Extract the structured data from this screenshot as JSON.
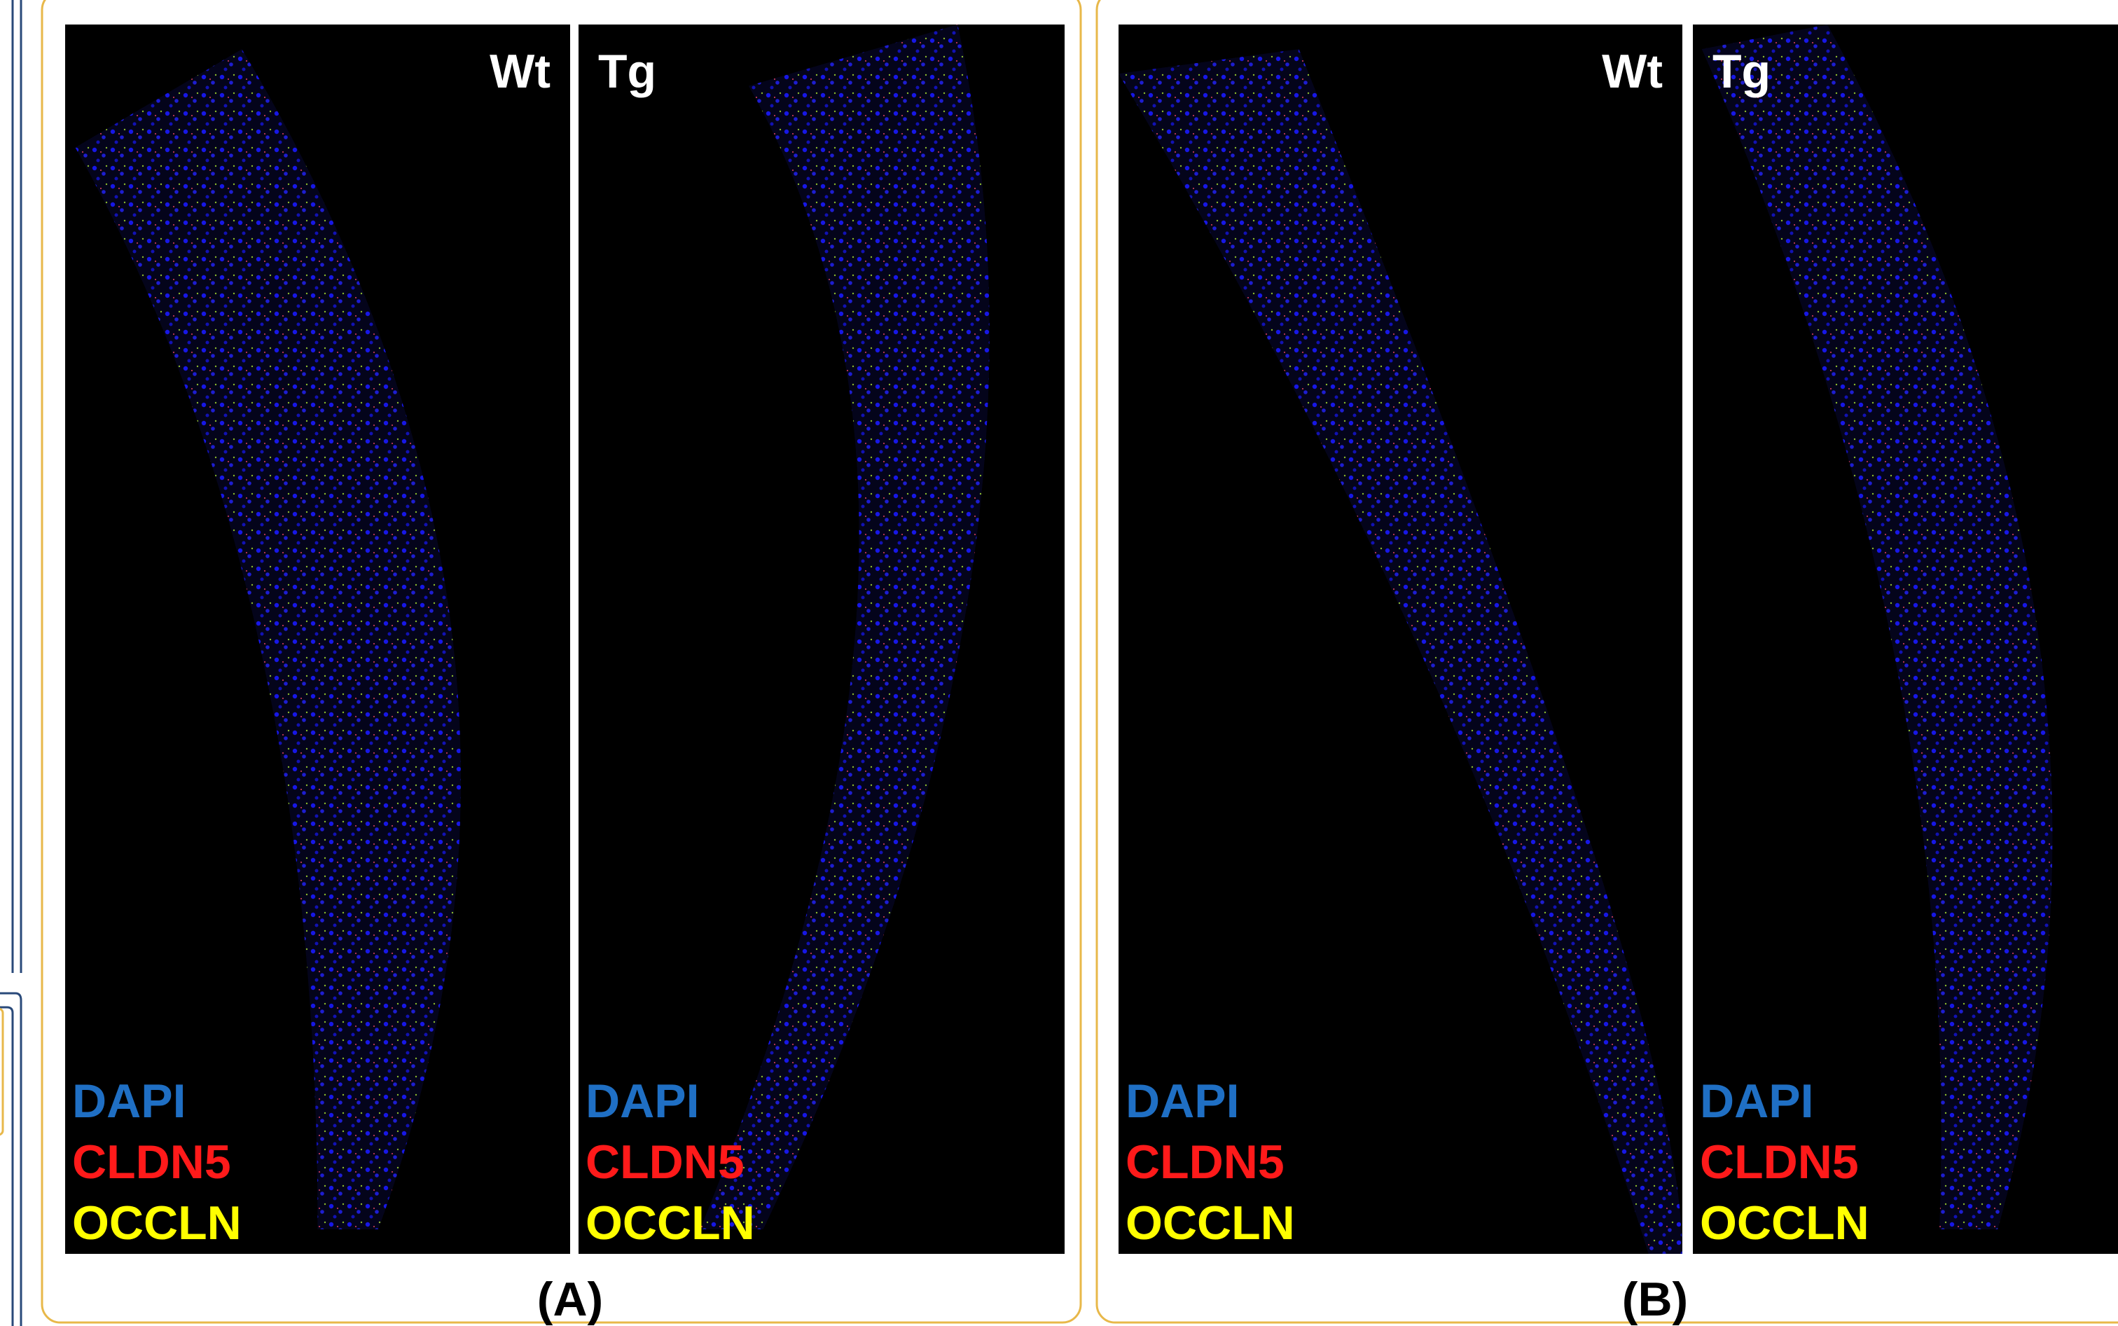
{
  "panels": [
    {
      "label": "(A)",
      "images": [
        {
          "genotype": "Wt",
          "stains": [
            "DAPI",
            "CLDN5",
            "OCCLN"
          ]
        },
        {
          "genotype": "Tg",
          "stains": [
            "DAPI",
            "CLDN5",
            "OCCLN"
          ]
        }
      ]
    },
    {
      "label": "(B)",
      "images": [
        {
          "genotype": "Wt",
          "stains": [
            "DAPI",
            "CLDN5",
            "OCCLN"
          ]
        },
        {
          "genotype": "Tg",
          "stains": [
            "DAPI",
            "CLDN5",
            "OCCLN"
          ]
        }
      ]
    }
  ]
}
